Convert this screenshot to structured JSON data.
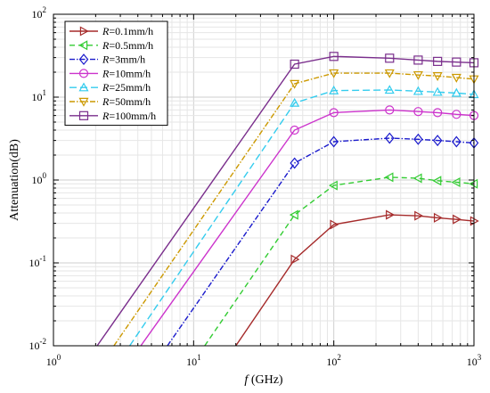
{
  "chart_data": {
    "type": "line",
    "title": "",
    "xlabel_italic": "f",
    "xlabel_rest": " (GHz)",
    "ylabel": "Attenuation(dB)",
    "xscale": "log",
    "yscale": "log",
    "xlim": [
      1,
      1000
    ],
    "ylim": [
      0.01,
      100
    ],
    "grid": true,
    "legend_position": "top-left",
    "x_ticks": [
      {
        "base": "10",
        "exp": "0"
      },
      {
        "base": "10",
        "exp": "1"
      },
      {
        "base": "10",
        "exp": "2"
      },
      {
        "base": "10",
        "exp": "3"
      }
    ],
    "y_ticks": [
      {
        "base": "10",
        "exp": "-2"
      },
      {
        "base": "10",
        "exp": "-1"
      },
      {
        "base": "10",
        "exp": "0"
      },
      {
        "base": "10",
        "exp": "1"
      },
      {
        "base": "10",
        "exp": "2"
      }
    ],
    "series": [
      {
        "name_var": "R",
        "name_rest": "=0.1mm/h",
        "color": "#a52a2a",
        "dash": "",
        "marker": "triangle-right",
        "x": [
          20,
          52.5,
          100,
          250,
          400,
          550,
          750,
          1000
        ],
        "y": [
          0.01,
          0.11,
          0.29,
          0.38,
          0.37,
          0.35,
          0.335,
          0.32
        ]
      },
      {
        "name_var": "R",
        "name_rest": "=0.5mm/h",
        "color": "#33cc33",
        "dash": "6,4",
        "marker": "triangle-left",
        "x": [
          12,
          52.5,
          100,
          250,
          400,
          550,
          750,
          1000
        ],
        "y": [
          0.01,
          0.38,
          0.86,
          1.08,
          1.05,
          0.98,
          0.94,
          0.9
        ]
      },
      {
        "name_var": "R",
        "name_rest": "=3mm/h",
        "color": "#1a1acc",
        "dash": "6,2,1.5,2",
        "marker": "diamond",
        "x": [
          6.5,
          52.5,
          100,
          250,
          400,
          550,
          750,
          1000
        ],
        "y": [
          0.01,
          1.6,
          2.9,
          3.2,
          3.1,
          3.0,
          2.9,
          2.8
        ]
      },
      {
        "name_var": "R",
        "name_rest": "=10mm/h",
        "color": "#cc33cc",
        "dash": "",
        "marker": "circle",
        "x": [
          4.2,
          52.5,
          100,
          250,
          400,
          550,
          750,
          1000
        ],
        "y": [
          0.01,
          4.0,
          6.5,
          7.0,
          6.7,
          6.5,
          6.2,
          6.0
        ]
      },
      {
        "name_var": "R",
        "name_rest": "=25mm/h",
        "color": "#33ccee",
        "dash": "8,4",
        "marker": "triangle-up",
        "x": [
          3.5,
          52.5,
          100,
          250,
          400,
          550,
          750,
          1000
        ],
        "y": [
          0.01,
          8.5,
          12.0,
          12.2,
          11.8,
          11.5,
          11.2,
          10.8
        ]
      },
      {
        "name_var": "R",
        "name_rest": "=50mm/h",
        "color": "#cc9900",
        "dash": "6,2,1.5,2",
        "marker": "triangle-down",
        "x": [
          2.7,
          52.5,
          100,
          250,
          400,
          550,
          750,
          1000
        ],
        "y": [
          0.01,
          14.5,
          19.5,
          19.5,
          18.5,
          18.0,
          17.2,
          16.5
        ]
      },
      {
        "name_var": "R",
        "name_rest": "=100mm/h",
        "color": "#7a2e8c",
        "dash": "",
        "marker": "square",
        "x": [
          2.05,
          52.5,
          100,
          250,
          400,
          550,
          750,
          1000
        ],
        "y": [
          0.01,
          25.0,
          31.0,
          29.5,
          28.0,
          27.0,
          26.5,
          26.0
        ]
      }
    ]
  }
}
